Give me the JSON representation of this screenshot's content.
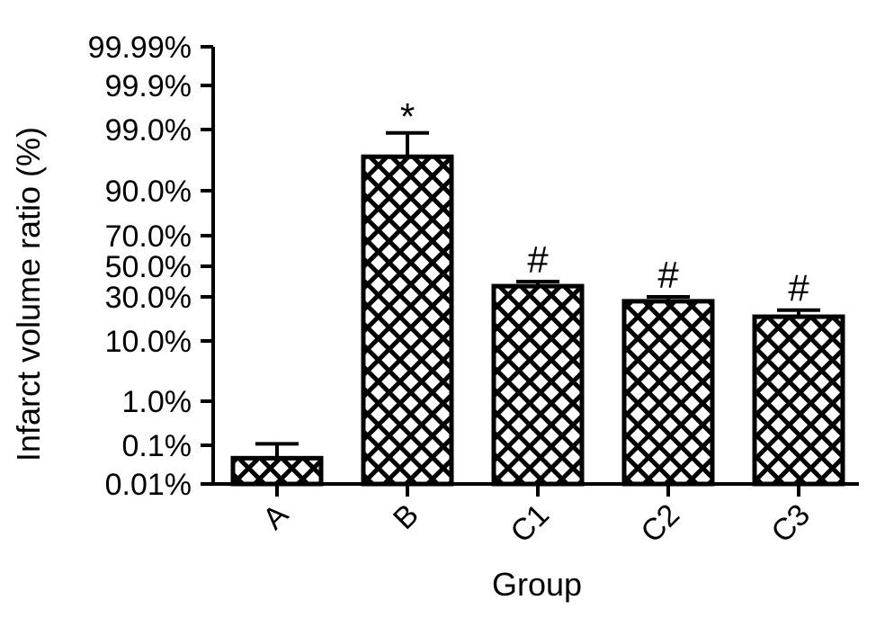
{
  "chart_data": {
    "type": "bar",
    "y_scale": "probability",
    "categories": [
      "A",
      "B",
      "C1",
      "C2",
      "C3"
    ],
    "values": [
      0.07,
      95.0,
      37.0,
      28.0,
      21.0
    ],
    "error_upper": [
      0.13,
      98.5,
      40.0,
      30.0,
      24.0
    ],
    "annotations": [
      "",
      "*",
      "#",
      "#",
      "#"
    ],
    "ytick_labels": [
      "0.01%",
      "0.1%",
      "1.0%",
      "10.0%",
      "30.0%",
      "50.0%",
      "70.0%",
      "90.0%",
      "99.0%",
      "99.9%",
      "99.99%"
    ],
    "ytick_values": [
      0.01,
      0.1,
      1.0,
      10.0,
      30.0,
      50.0,
      70.0,
      90.0,
      99.0,
      99.9,
      99.99
    ],
    "ylim": [
      0.01,
      99.99
    ],
    "xlabel": "Group",
    "ylabel": "Infarct volume ratio (%)",
    "bar_fill": "crosshatch",
    "colors": {
      "bar_outline": "#000000",
      "hatch": "#000000",
      "background": "#ffffff"
    }
  }
}
